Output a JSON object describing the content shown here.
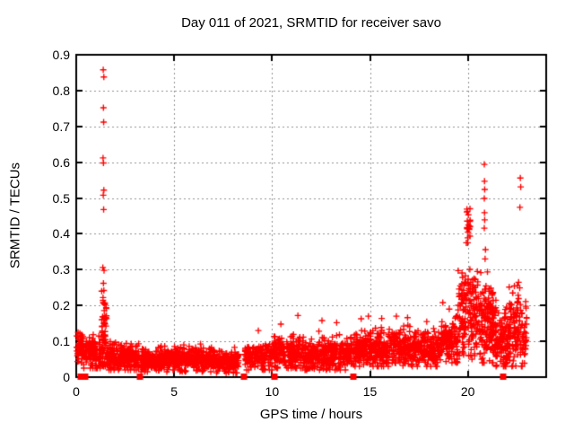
{
  "chart_data": {
    "type": "scatter",
    "title": "Day 011 of 2021, SRMTID for receiver savo",
    "xlabel": "GPS time / hours",
    "ylabel": "SRMTID / TECUs",
    "xlim": [
      0,
      24
    ],
    "ylim": [
      0,
      0.9
    ],
    "grid": true,
    "legend": "none",
    "marker": {
      "glyph": "plus",
      "size": 7,
      "name": "srmtid-point"
    },
    "zero_marker": {
      "glyph": "filled-square",
      "size": 7,
      "name": "data-gap-marker"
    },
    "colors": {
      "marker": "#ff0000",
      "grid": "#909090",
      "axis": "#000000",
      "text": "#000000",
      "background": "#ffffff"
    },
    "x_ticks": {
      "values": [
        0,
        5,
        10,
        15,
        20
      ],
      "labels": [
        "0",
        "5",
        "10",
        "15",
        "20"
      ]
    },
    "y_ticks": {
      "values": [
        0,
        0.1,
        0.2,
        0.3,
        0.4,
        0.5,
        0.6,
        0.7,
        0.8,
        0.9
      ],
      "labels": [
        "0",
        "0.1",
        "0.2",
        "0.3",
        "0.4",
        "0.5",
        "0.6",
        "0.7",
        "0.8",
        "0.9"
      ]
    },
    "x_grid": [
      5,
      10,
      15,
      20
    ],
    "y_grid": [
      0.1,
      0.2,
      0.3,
      0.4,
      0.5,
      0.6,
      0.7,
      0.8
    ],
    "clusters": [
      {
        "x0": 0.02,
        "x1": 0.35,
        "n": 60,
        "mean": 0.085,
        "sd": 0.02,
        "min": 0.04,
        "max": 0.125
      },
      {
        "x0": 0.35,
        "x1": 1.3,
        "n": 130,
        "mean": 0.065,
        "sd": 0.022,
        "min": 0.025,
        "max": 0.13
      },
      {
        "x0": 1.3,
        "x1": 1.55,
        "n": 55,
        "mean": 0.11,
        "sd": 0.055,
        "min": 0.03,
        "max": 0.31
      },
      {
        "x0": 1.55,
        "x1": 3.2,
        "n": 230,
        "mean": 0.055,
        "sd": 0.018,
        "min": 0.02,
        "max": 0.115
      },
      {
        "x0": 3.3,
        "x1": 5.0,
        "n": 240,
        "mean": 0.047,
        "sd": 0.016,
        "min": 0.015,
        "max": 0.1
      },
      {
        "x0": 5.0,
        "x1": 7.0,
        "n": 270,
        "mean": 0.05,
        "sd": 0.017,
        "min": 0.015,
        "max": 0.105
      },
      {
        "x0": 7.0,
        "x1": 8.3,
        "n": 180,
        "mean": 0.042,
        "sd": 0.015,
        "min": 0.012,
        "max": 0.09
      },
      {
        "x0": 8.6,
        "x1": 10.0,
        "n": 170,
        "mean": 0.055,
        "sd": 0.018,
        "min": 0.02,
        "max": 0.11
      },
      {
        "x0": 10.05,
        "x1": 11.5,
        "n": 200,
        "mean": 0.068,
        "sd": 0.022,
        "min": 0.025,
        "max": 0.13
      },
      {
        "x0": 11.5,
        "x1": 14.1,
        "n": 330,
        "mean": 0.065,
        "sd": 0.022,
        "min": 0.02,
        "max": 0.14
      },
      {
        "x0": 14.15,
        "x1": 16.0,
        "n": 250,
        "mean": 0.078,
        "sd": 0.025,
        "min": 0.03,
        "max": 0.15
      },
      {
        "x0": 16.0,
        "x1": 17.5,
        "n": 200,
        "mean": 0.082,
        "sd": 0.026,
        "min": 0.03,
        "max": 0.155
      },
      {
        "x0": 17.5,
        "x1": 18.6,
        "n": 140,
        "mean": 0.078,
        "sd": 0.024,
        "min": 0.03,
        "max": 0.15
      },
      {
        "x0": 18.6,
        "x1": 19.5,
        "n": 130,
        "mean": 0.1,
        "sd": 0.03,
        "min": 0.04,
        "max": 0.2
      },
      {
        "x0": 19.5,
        "x1": 20.6,
        "n": 170,
        "mean": 0.17,
        "sd": 0.062,
        "min": 0.05,
        "max": 0.37
      },
      {
        "x0": 19.92,
        "x1": 20.12,
        "n": 22,
        "mean": 0.425,
        "sd": 0.035,
        "min": 0.375,
        "max": 0.487
      },
      {
        "x0": 20.6,
        "x1": 21.3,
        "n": 140,
        "mean": 0.15,
        "sd": 0.055,
        "min": 0.04,
        "max": 0.33
      },
      {
        "x0": 21.3,
        "x1": 22.1,
        "n": 130,
        "mean": 0.11,
        "sd": 0.045,
        "min": 0.03,
        "max": 0.27
      },
      {
        "x0": 22.1,
        "x1": 22.75,
        "n": 100,
        "mean": 0.14,
        "sd": 0.055,
        "min": 0.03,
        "max": 0.275
      },
      {
        "x0": 22.75,
        "x1": 23.0,
        "n": 35,
        "mean": 0.1,
        "sd": 0.05,
        "min": 0.03,
        "max": 0.22
      }
    ],
    "outliers": [
      [
        1.38,
        0.858
      ],
      [
        1.41,
        0.838
      ],
      [
        1.39,
        0.752
      ],
      [
        1.4,
        0.712
      ],
      [
        1.37,
        0.612
      ],
      [
        1.39,
        0.598
      ],
      [
        1.41,
        0.522
      ],
      [
        1.38,
        0.508
      ],
      [
        1.4,
        0.468
      ],
      [
        1.36,
        0.306
      ],
      [
        1.42,
        0.298
      ],
      [
        1.39,
        0.262
      ],
      [
        1.41,
        0.242
      ],
      [
        1.37,
        0.222
      ],
      [
        1.4,
        0.206
      ],
      [
        1.43,
        0.186
      ],
      [
        1.36,
        0.168
      ],
      [
        1.44,
        0.152
      ],
      [
        20.84,
        0.594
      ],
      [
        20.85,
        0.547
      ],
      [
        20.86,
        0.524
      ],
      [
        20.84,
        0.499
      ],
      [
        20.85,
        0.459
      ],
      [
        20.86,
        0.439
      ],
      [
        20.84,
        0.416
      ],
      [
        20.9,
        0.356
      ],
      [
        20.88,
        0.33
      ],
      [
        22.68,
        0.556
      ],
      [
        22.7,
        0.531
      ],
      [
        22.66,
        0.474
      ],
      [
        9.3,
        0.13
      ],
      [
        10.45,
        0.148
      ],
      [
        11.32,
        0.172
      ],
      [
        12.55,
        0.158
      ],
      [
        13.3,
        0.152
      ],
      [
        14.55,
        0.163
      ],
      [
        14.92,
        0.17
      ],
      [
        15.6,
        0.164
      ],
      [
        16.35,
        0.17
      ],
      [
        16.92,
        0.166
      ],
      [
        17.9,
        0.155
      ],
      [
        18.72,
        0.208
      ],
      [
        19.05,
        0.19
      ]
    ],
    "zero_markers": [
      0.22,
      0.45,
      3.25,
      8.57,
      10.12,
      14.15,
      21.8
    ]
  }
}
